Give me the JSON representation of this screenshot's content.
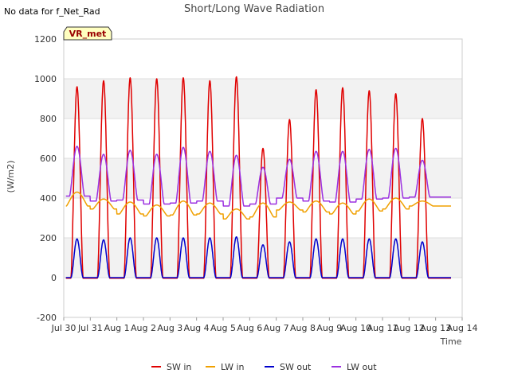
{
  "note": "No data for f_Net_Rad",
  "badge": "VR_met",
  "chart_data": {
    "type": "line",
    "title": "Short/Long Wave Radiation",
    "xlabel": "Time",
    "ylabel": "(W/m2)",
    "ylim": [
      -200,
      1200
    ],
    "yticks": [
      -200,
      0,
      200,
      400,
      600,
      800,
      1000,
      1200
    ],
    "xlim": [
      0,
      15
    ],
    "xticks": [
      {
        "value": 0,
        "label": "Jul 30"
      },
      {
        "value": 1,
        "label": "Jul 31"
      },
      {
        "value": 2,
        "label": "Aug 1"
      },
      {
        "value": 3,
        "label": "Aug 2"
      },
      {
        "value": 4,
        "label": "Aug 3"
      },
      {
        "value": 5,
        "label": "Aug 4"
      },
      {
        "value": 6,
        "label": "Aug 5"
      },
      {
        "value": 7,
        "label": "Aug 6"
      },
      {
        "value": 8,
        "label": "Aug 7"
      },
      {
        "value": 9,
        "label": "Aug 8"
      },
      {
        "value": 10,
        "label": "Aug 9"
      },
      {
        "value": 11,
        "label": "Aug 10"
      },
      {
        "value": 12,
        "label": "Aug 11"
      },
      {
        "value": 13,
        "label": "Aug 12"
      },
      {
        "value": 14,
        "label": "Aug 13"
      },
      {
        "value": 15,
        "label": "Aug 14"
      }
    ],
    "grid": true,
    "legend": "bottom",
    "days": [
      0.5,
      1.5,
      2.5,
      3.5,
      4.5,
      5.5,
      6.5,
      7.5,
      8.5,
      9.5,
      10.5,
      11.5,
      12.5,
      13.5
    ],
    "series": [
      {
        "name": "SW in",
        "color": "#e00000",
        "values": [
          960,
          990,
          1005,
          1000,
          1005,
          990,
          1010,
          650,
          795,
          945,
          955,
          940,
          925,
          800
        ]
      },
      {
        "name": "LW in",
        "color": "#f0a000",
        "values": [
          430,
          395,
          380,
          365,
          385,
          375,
          345,
          375,
          380,
          385,
          375,
          395,
          400,
          385
        ]
      },
      {
        "name": "SW out",
        "color": "#0000cc",
        "values": [
          195,
          190,
          200,
          200,
          200,
          200,
          205,
          165,
          180,
          195,
          195,
          195,
          195,
          180
        ]
      },
      {
        "name": "LW out",
        "color": "#9b30e0",
        "values": [
          660,
          620,
          640,
          620,
          655,
          635,
          615,
          555,
          595,
          635,
          635,
          645,
          650,
          590
        ]
      }
    ]
  }
}
